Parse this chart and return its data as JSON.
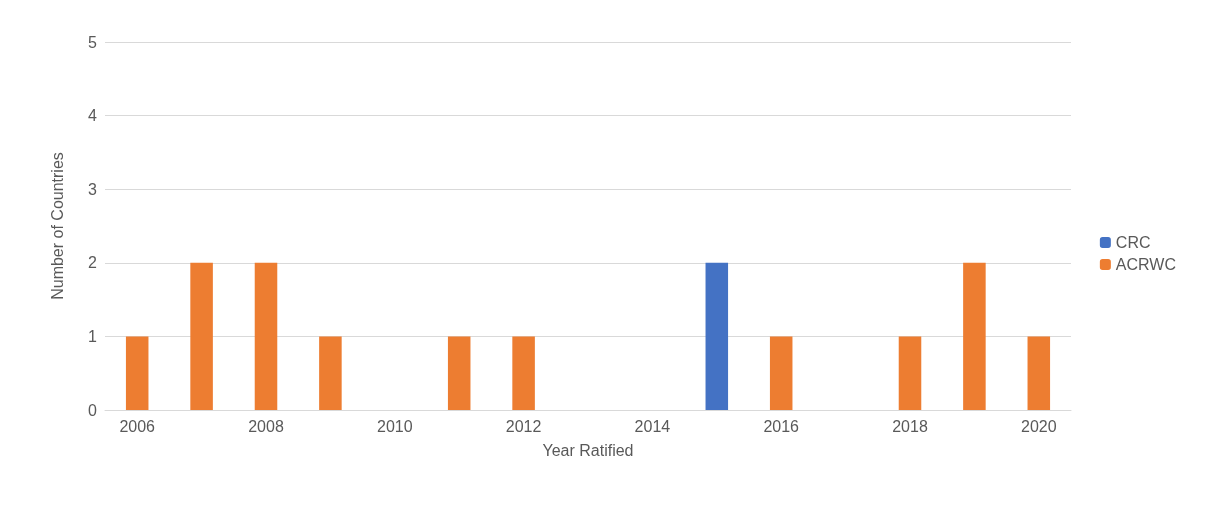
{
  "chart_data": {
    "type": "bar",
    "stacked": true,
    "xlabel": "Year Ratified",
    "ylabel": "Number of Countries",
    "categories": [
      "2006",
      null,
      "2008",
      null,
      "2010",
      null,
      "2012",
      null,
      "2014",
      null,
      "2016",
      null,
      "2018",
      null,
      "2020"
    ],
    "series": [
      {
        "name": "CRC",
        "color": "#4472c4",
        "values": [
          0,
          0,
          0,
          0,
          0,
          0,
          0,
          0,
          0,
          2,
          0,
          0,
          0,
          0,
          0
        ]
      },
      {
        "name": "ACRWC",
        "color": "#ed7d31",
        "values": [
          1,
          2,
          2,
          1,
          0,
          1,
          1,
          0,
          0,
          0,
          1,
          0,
          1,
          2,
          1
        ]
      }
    ],
    "ylim": [
      0,
      5
    ],
    "yticks": [
      0,
      1,
      2,
      3,
      4,
      5
    ],
    "grid": "y",
    "legend": "right"
  }
}
